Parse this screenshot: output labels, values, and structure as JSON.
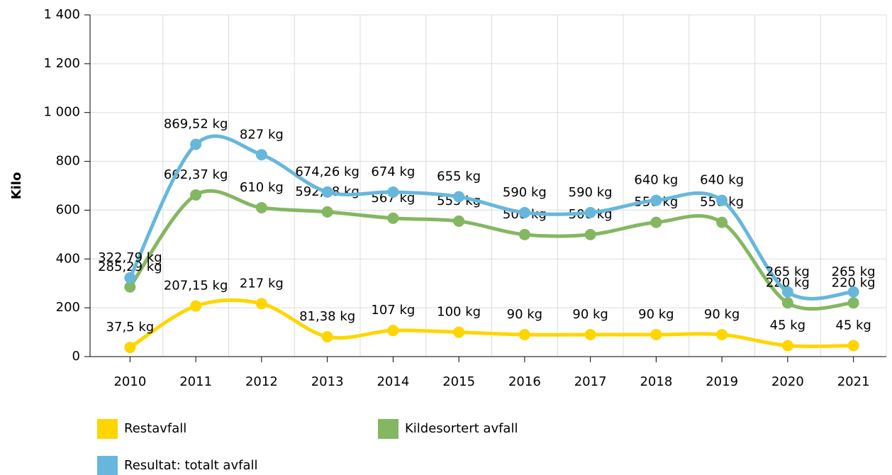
{
  "chart_data": {
    "type": "line",
    "y_label": "Kilo",
    "categories": [
      "2010",
      "2011",
      "2012",
      "2013",
      "2014",
      "2015",
      "2016",
      "2017",
      "2018",
      "2019",
      "2020",
      "2021"
    ],
    "series": [
      {
        "name": "Restavfall",
        "color": "#ffd500",
        "values": [
          37.5,
          207.15,
          217,
          81.38,
          107,
          100,
          90,
          90,
          90,
          90,
          45,
          45
        ],
        "value_labels": [
          "37,5 kg",
          "207,15 kg",
          "217 kg",
          "81,38 kg",
          "107 kg",
          "100 kg",
          "90 kg",
          "90 kg",
          "90 kg",
          "90 kg",
          "45 kg",
          "45 kg"
        ]
      },
      {
        "name": "Kildesortert avfall",
        "color": "#84b761",
        "values": [
          285.29,
          662.37,
          610,
          592.88,
          567,
          555,
          500,
          500,
          550,
          550,
          220,
          220
        ],
        "value_labels": [
          "285,29 kg",
          "662,37 kg",
          "610 kg",
          "592,88 kg",
          "567 kg",
          "555 kg",
          "500 kg",
          "500 kg",
          "550 kg",
          "550 kg",
          "220 kg",
          "220 kg"
        ]
      },
      {
        "name": "Resultat: totalt avfall",
        "color": "#67b7dc",
        "values": [
          322.79,
          869.52,
          827,
          674.26,
          674,
          655,
          590,
          590,
          640,
          640,
          265,
          265
        ],
        "value_labels": [
          "322,79 kg",
          "869,52 kg",
          "827 kg",
          "674,26 kg",
          "674 kg",
          "655 kg",
          "590 kg",
          "590 kg",
          "640 kg",
          "640 kg",
          "265 kg",
          "265 kg"
        ]
      }
    ],
    "ylim": [
      0,
      1400
    ],
    "yticks": [
      0,
      200,
      400,
      600,
      800,
      {
        "value": 1000,
        "label": "1 000"
      },
      {
        "value": 1200,
        "label": "1 200"
      },
      {
        "value": 1400,
        "label": "1 400"
      }
    ],
    "grid": true
  }
}
